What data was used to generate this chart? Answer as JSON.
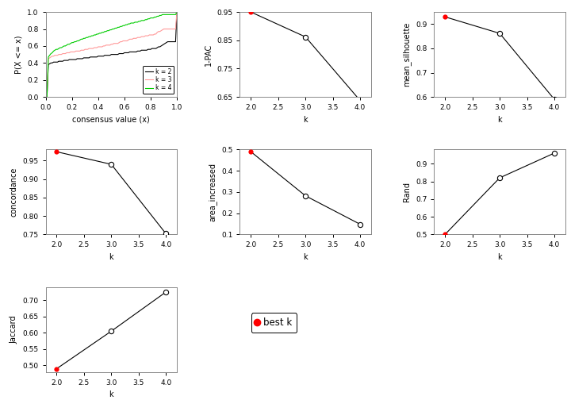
{
  "ecdf": {
    "k2": {
      "color": "#000000",
      "label": "k = 2",
      "x": [
        0.0,
        0.01,
        0.02,
        0.03,
        0.04,
        0.05,
        0.06,
        0.07,
        0.08,
        0.09,
        0.1,
        0.11,
        0.12,
        0.13,
        0.14,
        0.15,
        0.16,
        0.17,
        0.18,
        0.19,
        0.2,
        0.21,
        0.22,
        0.23,
        0.24,
        0.25,
        0.26,
        0.27,
        0.28,
        0.29,
        0.3,
        0.31,
        0.32,
        0.33,
        0.34,
        0.35,
        0.36,
        0.37,
        0.38,
        0.39,
        0.4,
        0.41,
        0.42,
        0.43,
        0.44,
        0.45,
        0.46,
        0.47,
        0.48,
        0.49,
        0.5,
        0.51,
        0.52,
        0.53,
        0.54,
        0.55,
        0.56,
        0.57,
        0.58,
        0.59,
        0.6,
        0.61,
        0.62,
        0.63,
        0.64,
        0.65,
        0.66,
        0.67,
        0.68,
        0.69,
        0.7,
        0.71,
        0.72,
        0.73,
        0.74,
        0.75,
        0.76,
        0.77,
        0.78,
        0.79,
        0.8,
        0.81,
        0.82,
        0.83,
        0.84,
        0.85,
        0.86,
        0.87,
        0.88,
        0.89,
        0.9,
        0.91,
        0.92,
        0.93,
        0.94,
        0.95,
        0.96,
        0.97,
        0.98,
        0.99,
        1.0
      ],
      "y": [
        0.0,
        0.0,
        0.38,
        0.39,
        0.4,
        0.4,
        0.41,
        0.41,
        0.41,
        0.41,
        0.42,
        0.42,
        0.42,
        0.42,
        0.43,
        0.43,
        0.43,
        0.43,
        0.44,
        0.44,
        0.44,
        0.44,
        0.44,
        0.44,
        0.45,
        0.45,
        0.45,
        0.45,
        0.45,
        0.46,
        0.46,
        0.46,
        0.46,
        0.46,
        0.47,
        0.47,
        0.47,
        0.47,
        0.47,
        0.47,
        0.48,
        0.48,
        0.48,
        0.48,
        0.48,
        0.49,
        0.49,
        0.49,
        0.49,
        0.49,
        0.5,
        0.5,
        0.5,
        0.5,
        0.5,
        0.5,
        0.51,
        0.51,
        0.51,
        0.51,
        0.52,
        0.52,
        0.52,
        0.52,
        0.53,
        0.53,
        0.53,
        0.53,
        0.53,
        0.53,
        0.54,
        0.54,
        0.54,
        0.55,
        0.55,
        0.55,
        0.55,
        0.55,
        0.56,
        0.56,
        0.56,
        0.57,
        0.57,
        0.57,
        0.57,
        0.58,
        0.59,
        0.59,
        0.6,
        0.61,
        0.62,
        0.63,
        0.64,
        0.65,
        0.65,
        0.65,
        0.65,
        0.65,
        0.65,
        0.65,
        1.0
      ]
    },
    "k3": {
      "color": "#FF9999",
      "label": "k = 3",
      "x": [
        0.0,
        0.01,
        0.02,
        0.03,
        0.04,
        0.05,
        0.06,
        0.07,
        0.08,
        0.09,
        0.1,
        0.11,
        0.12,
        0.13,
        0.14,
        0.15,
        0.16,
        0.17,
        0.18,
        0.19,
        0.2,
        0.21,
        0.22,
        0.23,
        0.24,
        0.25,
        0.26,
        0.27,
        0.28,
        0.29,
        0.3,
        0.31,
        0.32,
        0.33,
        0.34,
        0.35,
        0.36,
        0.37,
        0.38,
        0.39,
        0.4,
        0.41,
        0.42,
        0.43,
        0.44,
        0.45,
        0.46,
        0.47,
        0.48,
        0.49,
        0.5,
        0.51,
        0.52,
        0.53,
        0.54,
        0.55,
        0.56,
        0.57,
        0.58,
        0.59,
        0.6,
        0.61,
        0.62,
        0.63,
        0.64,
        0.65,
        0.66,
        0.67,
        0.68,
        0.69,
        0.7,
        0.71,
        0.72,
        0.73,
        0.74,
        0.75,
        0.76,
        0.77,
        0.78,
        0.79,
        0.8,
        0.81,
        0.82,
        0.83,
        0.84,
        0.85,
        0.86,
        0.87,
        0.88,
        0.89,
        0.9,
        0.91,
        0.92,
        0.93,
        0.94,
        0.95,
        0.96,
        0.97,
        0.98,
        0.99,
        1.0
      ],
      "y": [
        0.0,
        0.0,
        0.45,
        0.46,
        0.47,
        0.48,
        0.48,
        0.49,
        0.49,
        0.49,
        0.5,
        0.5,
        0.5,
        0.51,
        0.51,
        0.51,
        0.52,
        0.52,
        0.52,
        0.53,
        0.53,
        0.53,
        0.53,
        0.54,
        0.54,
        0.54,
        0.54,
        0.55,
        0.55,
        0.55,
        0.56,
        0.56,
        0.56,
        0.57,
        0.57,
        0.57,
        0.57,
        0.58,
        0.58,
        0.58,
        0.59,
        0.59,
        0.59,
        0.59,
        0.6,
        0.6,
        0.61,
        0.61,
        0.61,
        0.61,
        0.62,
        0.62,
        0.63,
        0.63,
        0.63,
        0.63,
        0.64,
        0.65,
        0.65,
        0.66,
        0.66,
        0.66,
        0.66,
        0.67,
        0.68,
        0.68,
        0.68,
        0.69,
        0.69,
        0.69,
        0.7,
        0.7,
        0.7,
        0.71,
        0.71,
        0.71,
        0.72,
        0.72,
        0.72,
        0.73,
        0.73,
        0.73,
        0.73,
        0.74,
        0.74,
        0.76,
        0.77,
        0.77,
        0.78,
        0.79,
        0.8,
        0.8,
        0.8,
        0.8,
        0.8,
        0.8,
        0.8,
        0.8,
        0.8,
        0.8,
        1.0
      ]
    },
    "k4": {
      "color": "#00CC00",
      "label": "k = 4",
      "x": [
        0.0,
        0.01,
        0.02,
        0.03,
        0.04,
        0.05,
        0.06,
        0.07,
        0.08,
        0.09,
        0.1,
        0.11,
        0.12,
        0.13,
        0.14,
        0.15,
        0.16,
        0.17,
        0.18,
        0.19,
        0.2,
        0.21,
        0.22,
        0.23,
        0.24,
        0.25,
        0.26,
        0.27,
        0.28,
        0.29,
        0.3,
        0.31,
        0.32,
        0.33,
        0.34,
        0.35,
        0.36,
        0.37,
        0.38,
        0.39,
        0.4,
        0.41,
        0.42,
        0.43,
        0.44,
        0.45,
        0.46,
        0.47,
        0.48,
        0.49,
        0.5,
        0.51,
        0.52,
        0.53,
        0.54,
        0.55,
        0.56,
        0.57,
        0.58,
        0.59,
        0.6,
        0.61,
        0.62,
        0.63,
        0.64,
        0.65,
        0.66,
        0.67,
        0.68,
        0.69,
        0.7,
        0.71,
        0.72,
        0.73,
        0.74,
        0.75,
        0.76,
        0.77,
        0.78,
        0.79,
        0.8,
        0.81,
        0.82,
        0.83,
        0.84,
        0.85,
        0.86,
        0.87,
        0.88,
        0.89,
        0.9,
        0.91,
        0.92,
        0.93,
        0.94,
        0.95,
        0.96,
        0.97,
        0.98,
        0.99,
        1.0
      ],
      "y": [
        0.0,
        0.0,
        0.47,
        0.49,
        0.51,
        0.52,
        0.54,
        0.55,
        0.56,
        0.56,
        0.57,
        0.58,
        0.58,
        0.59,
        0.6,
        0.6,
        0.61,
        0.62,
        0.62,
        0.63,
        0.64,
        0.64,
        0.65,
        0.65,
        0.66,
        0.66,
        0.67,
        0.68,
        0.68,
        0.69,
        0.69,
        0.7,
        0.7,
        0.71,
        0.71,
        0.72,
        0.72,
        0.73,
        0.73,
        0.74,
        0.74,
        0.75,
        0.75,
        0.76,
        0.76,
        0.77,
        0.77,
        0.78,
        0.78,
        0.79,
        0.79,
        0.8,
        0.8,
        0.81,
        0.81,
        0.82,
        0.82,
        0.83,
        0.83,
        0.84,
        0.84,
        0.85,
        0.85,
        0.86,
        0.86,
        0.87,
        0.87,
        0.87,
        0.88,
        0.88,
        0.88,
        0.89,
        0.89,
        0.9,
        0.9,
        0.9,
        0.91,
        0.91,
        0.92,
        0.92,
        0.93,
        0.93,
        0.93,
        0.94,
        0.94,
        0.95,
        0.95,
        0.96,
        0.96,
        0.97,
        0.97,
        0.97,
        0.97,
        0.97,
        0.97,
        0.97,
        0.97,
        0.97,
        0.97,
        0.97,
        1.0
      ]
    }
  },
  "one_pac": {
    "k": [
      2,
      3,
      4
    ],
    "v": [
      0.95,
      0.862,
      0.637
    ],
    "best_k": 2,
    "ylim": [
      0.65,
      0.95
    ],
    "yticks": [
      0.65,
      0.75,
      0.85,
      0.95
    ],
    "ylabel": "1-PAC"
  },
  "mean_silhouette": {
    "k": [
      2,
      3,
      4
    ],
    "v": [
      0.93,
      0.862,
      0.59
    ],
    "best_k": 2,
    "ylim": [
      0.6,
      0.95
    ],
    "yticks": [
      0.6,
      0.7,
      0.8,
      0.9
    ],
    "ylabel": "mean_silhouette"
  },
  "concordance": {
    "k": [
      2,
      3,
      4
    ],
    "v": [
      0.974,
      0.94,
      0.752
    ],
    "best_k": 2,
    "ylim": [
      0.75,
      0.98
    ],
    "yticks": [
      0.75,
      0.8,
      0.85,
      0.9,
      0.95
    ],
    "ylabel": "concordance"
  },
  "area_increased": {
    "k": [
      2,
      3,
      4
    ],
    "v": [
      0.49,
      0.282,
      0.148
    ],
    "best_k": 2,
    "ylim": [
      0.1,
      0.5
    ],
    "yticks": [
      0.1,
      0.2,
      0.3,
      0.4,
      0.5
    ],
    "ylabel": "area_increased"
  },
  "rand": {
    "k": [
      2,
      3,
      4
    ],
    "v": [
      0.5,
      0.82,
      0.96
    ],
    "best_k": 2,
    "ylim": [
      0.5,
      0.98
    ],
    "yticks": [
      0.5,
      0.6,
      0.7,
      0.8,
      0.9
    ],
    "ylabel": "Rand"
  },
  "jaccard": {
    "k": [
      2,
      3,
      4
    ],
    "v": [
      0.49,
      0.605,
      0.725
    ],
    "best_k": 2,
    "ylim": [
      0.48,
      0.74
    ],
    "yticks": [
      0.5,
      0.55,
      0.6,
      0.65,
      0.7
    ],
    "ylabel": "Jaccard"
  },
  "legend_label": "best k",
  "ecdf_xlabel": "consensus value (x)",
  "ecdf_ylabel": "P(X <= x)",
  "k_xlabel": "k",
  "k_xticks": [
    2.0,
    2.5,
    3.0,
    3.5,
    4.0
  ],
  "k_xlim": [
    1.8,
    4.2
  ],
  "bg_color": "#FFFFFF",
  "spine_color": "#888888"
}
